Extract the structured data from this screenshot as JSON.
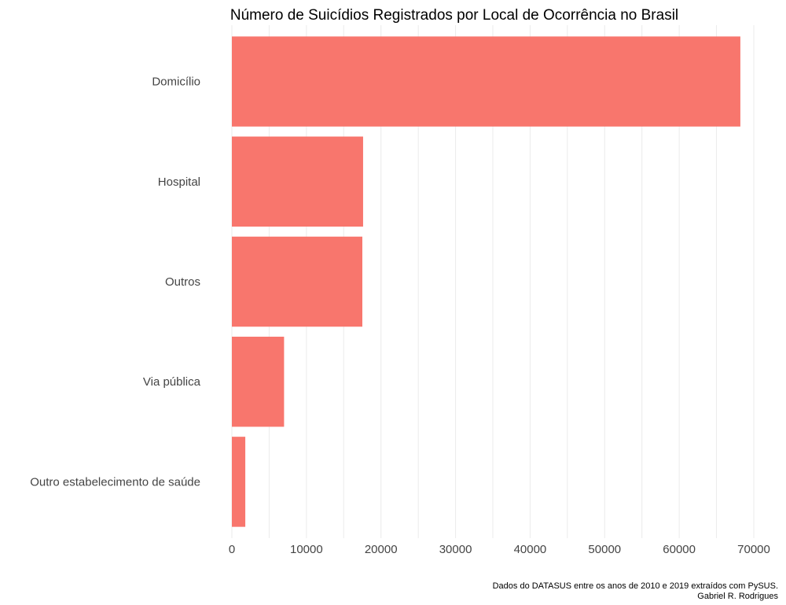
{
  "chart_data": {
    "type": "bar",
    "orientation": "horizontal",
    "title": "Número de Suicídios Registrados por Local de Ocorrência no Brasil",
    "caption_lines": [
      "Dados do DATASUS entre os anos de 2010 e 2019 extraídos com PySUS.",
      "Gabriel R. Rodrigues"
    ],
    "xlabel": "",
    "ylabel": "",
    "categories": [
      "Domicílio",
      "Hospital",
      "Outros",
      "Via pública",
      "Outro estabelecimento de saúde"
    ],
    "values": [
      68200,
      17600,
      17500,
      7000,
      1800
    ],
    "xlim": [
      0,
      70000
    ],
    "xticks": [
      0,
      10000,
      20000,
      30000,
      40000,
      50000,
      60000,
      70000
    ],
    "xtick_labels": [
      "0",
      "10000",
      "20000",
      "30000",
      "40000",
      "50000",
      "60000",
      "70000"
    ],
    "bar_color": "#f8766d",
    "grid": true
  }
}
